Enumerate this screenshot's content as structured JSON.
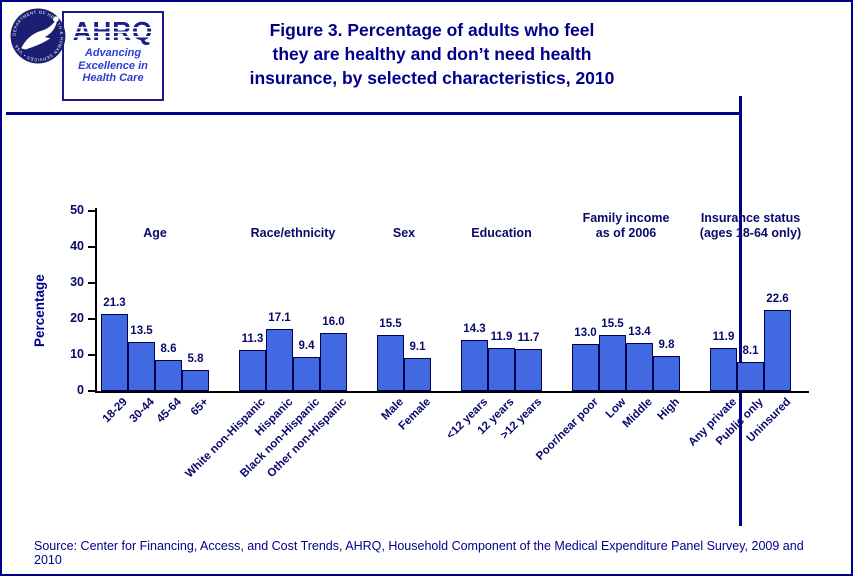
{
  "page": {
    "background": "#ffffff",
    "frame_color": "#00008B"
  },
  "header": {
    "hhs_seal_text": "DEPARTMENT OF HEALTH & HUMAN SERVICES • USA",
    "ahrq_logo": {
      "acronym": "AHRQ",
      "tagline_lines": [
        "Advancing",
        "Excellence in",
        "Health Care"
      ]
    },
    "title_lines": [
      "Figure 3. Percentage of adults who feel",
      "they are healthy and don’t need health",
      "insurance, by selected characteristics, 2010"
    ]
  },
  "footer": {
    "source": "Source: Center for Financing, Access, and Cost Trends, AHRQ, Household Component of the Medical Expenditure Panel Survey, 2009 and 2010"
  },
  "chart_data": {
    "type": "bar",
    "title": "Percentage of adults who feel they are healthy and don’t need health insurance, by selected characteristics, 2010",
    "ylabel": "Percentage",
    "xlabel": "",
    "ylim": [
      0,
      50
    ],
    "yticks": [
      0,
      10,
      20,
      30,
      40,
      50
    ],
    "grid": false,
    "legend": "none",
    "value_labels_decimals": 1,
    "colors": {
      "bar_fill": "#4169E1",
      "bar_border": "#000050",
      "label": "#0A0A6B",
      "axis": "#000000"
    },
    "groups": [
      {
        "label_lines": [
          "Age"
        ],
        "categories": [
          "18-29",
          "30-44",
          "45-64",
          "65+"
        ],
        "values": [
          21.3,
          13.5,
          8.6,
          5.8
        ]
      },
      {
        "label_lines": [
          "Race/ethnicity"
        ],
        "categories": [
          "White non-Hispanic",
          "Hispanic",
          "Black non-Hispanic",
          "Other non-Hispanic"
        ],
        "values": [
          11.3,
          17.1,
          9.4,
          16.0
        ]
      },
      {
        "label_lines": [
          "Sex"
        ],
        "categories": [
          "Male",
          "Female"
        ],
        "values": [
          15.5,
          9.1
        ]
      },
      {
        "label_lines": [
          "Education"
        ],
        "categories": [
          "<12 years",
          "12 years",
          ">12 years"
        ],
        "values": [
          14.3,
          11.9,
          11.7
        ]
      },
      {
        "label_lines": [
          "Family income",
          "as of 2006"
        ],
        "categories": [
          "Poor/near poor",
          "Low",
          "Middle",
          "High"
        ],
        "values": [
          13.0,
          15.5,
          13.4,
          9.8
        ]
      },
      {
        "label_lines": [
          "Insurance status",
          "(ages 18-64 only)"
        ],
        "categories": [
          "Any private",
          "Public only",
          "Uninsured"
        ],
        "values": [
          11.9,
          8.1,
          22.6
        ]
      }
    ]
  }
}
